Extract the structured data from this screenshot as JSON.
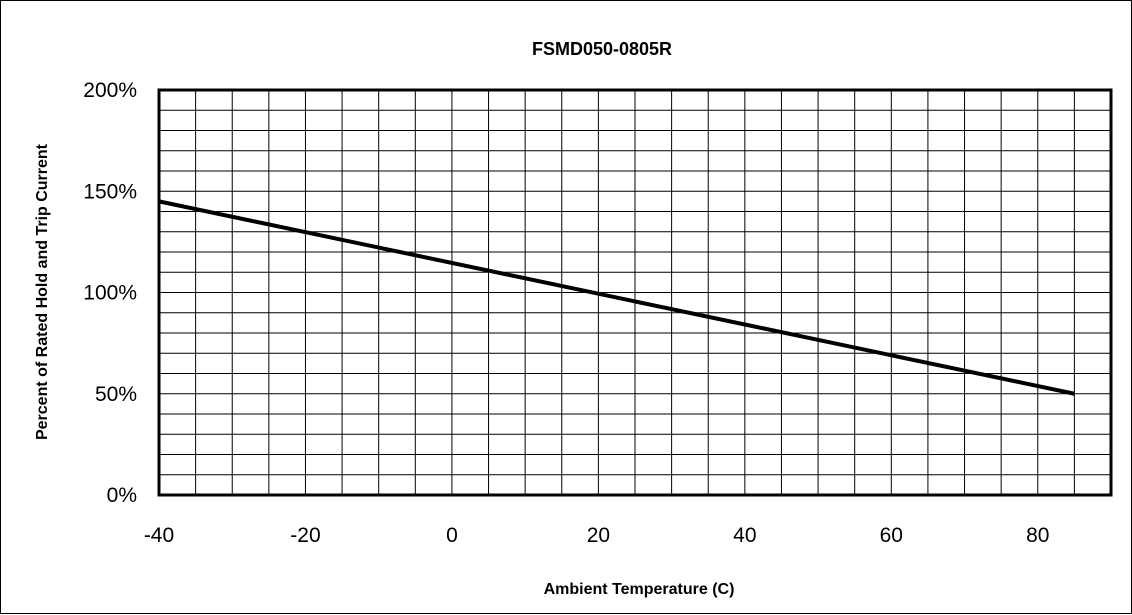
{
  "chart_data": {
    "type": "line",
    "title": "FSMD050-0805R",
    "xlabel": "Ambient Temperature (C)",
    "ylabel": "Percent of Rated Hold  and Trip Current",
    "xlim": [
      -40,
      90
    ],
    "ylim": [
      0,
      200
    ],
    "x_ticks": [
      -40,
      -20,
      0,
      20,
      40,
      60,
      80
    ],
    "x_tick_labels": [
      "-40",
      "-20",
      "0",
      "20",
      "40",
      "60",
      "80"
    ],
    "y_ticks": [
      0,
      50,
      100,
      150,
      200
    ],
    "y_tick_labels": [
      "0%",
      "50%",
      "100%",
      "150%",
      "200%"
    ],
    "x_minor_step": 5,
    "y_minor_step": 10,
    "grid": true,
    "legend": "none",
    "series": [
      {
        "x": [
          -40,
          85
        ],
        "y": [
          145,
          50
        ],
        "color": "#000000"
      }
    ]
  }
}
